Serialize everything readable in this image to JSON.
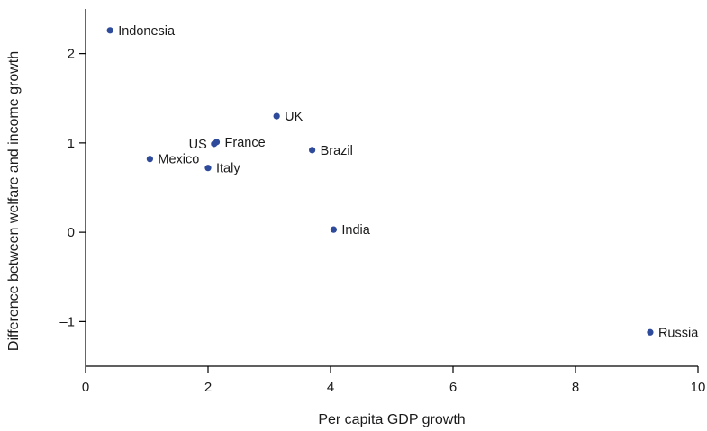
{
  "chart_data": {
    "type": "scatter",
    "xlabel": "Per capita GDP growth",
    "ylabel": "Difference between welfare and income growth",
    "xlim": [
      0,
      10
    ],
    "ylim": [
      -1.5,
      2.5
    ],
    "x_ticks": [
      0,
      2,
      4,
      6,
      8,
      10
    ],
    "y_ticks": [
      -1,
      0,
      1,
      2
    ],
    "x_tick_labels": [
      "0",
      "2",
      "4",
      "6",
      "8",
      "10"
    ],
    "y_tick_labels": [
      "–1",
      "0",
      "1",
      "2"
    ],
    "grid": false,
    "colors": {
      "point": "#2e4a9a"
    },
    "points": [
      {
        "label": "Indonesia",
        "x": 0.4,
        "y": 2.26,
        "label_side": "right"
      },
      {
        "label": "UK",
        "x": 3.12,
        "y": 1.3,
        "label_side": "right"
      },
      {
        "label": "US",
        "x": 2.1,
        "y": 0.99,
        "label_side": "left"
      },
      {
        "label": "France",
        "x": 2.14,
        "y": 1.01,
        "label_side": "right"
      },
      {
        "label": "Brazil",
        "x": 3.7,
        "y": 0.92,
        "label_side": "right"
      },
      {
        "label": "Mexico",
        "x": 1.05,
        "y": 0.82,
        "label_side": "right"
      },
      {
        "label": "Italy",
        "x": 2.0,
        "y": 0.72,
        "label_side": "right"
      },
      {
        "label": "India",
        "x": 4.05,
        "y": 0.03,
        "label_side": "right"
      },
      {
        "label": "Russia",
        "x": 9.22,
        "y": -1.12,
        "label_side": "right"
      }
    ]
  }
}
